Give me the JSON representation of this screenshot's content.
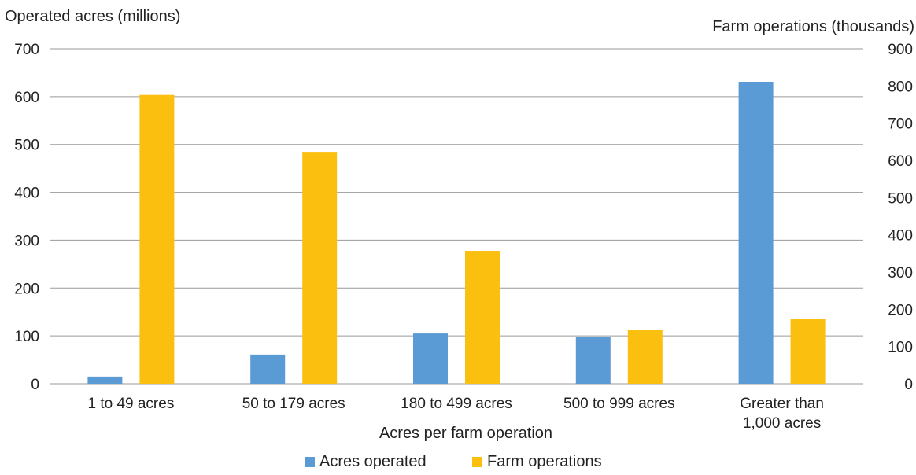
{
  "chart_data": {
    "type": "bar",
    "xlabel": "Acres per farm operation",
    "ylabel_left": "Operated acres (millions)",
    "ylabel_right": "Farm operations (thousands)",
    "categories": [
      [
        "1 to 49 acres"
      ],
      [
        "50 to 179 acres"
      ],
      [
        "180 to 499 acres"
      ],
      [
        "500 to 999 acres"
      ],
      [
        "Greater than",
        "1,000 acres"
      ]
    ],
    "ylim_left": [
      0,
      700
    ],
    "ylim_right": [
      0,
      900
    ],
    "yticks_left": [
      0,
      100,
      200,
      300,
      400,
      500,
      600,
      700
    ],
    "yticks_right": [
      0,
      100,
      200,
      300,
      400,
      500,
      600,
      700,
      800,
      900
    ],
    "grid": true,
    "legend_position": "bottom",
    "series": [
      {
        "name": "Acres operated",
        "axis": "left",
        "color": "#5b9bd5",
        "values": [
          15,
          61,
          105,
          97,
          631
        ]
      },
      {
        "name": "Farm operations",
        "axis": "right",
        "color": "#fbbf10",
        "values": [
          776,
          623,
          357,
          144,
          174
        ]
      }
    ]
  }
}
